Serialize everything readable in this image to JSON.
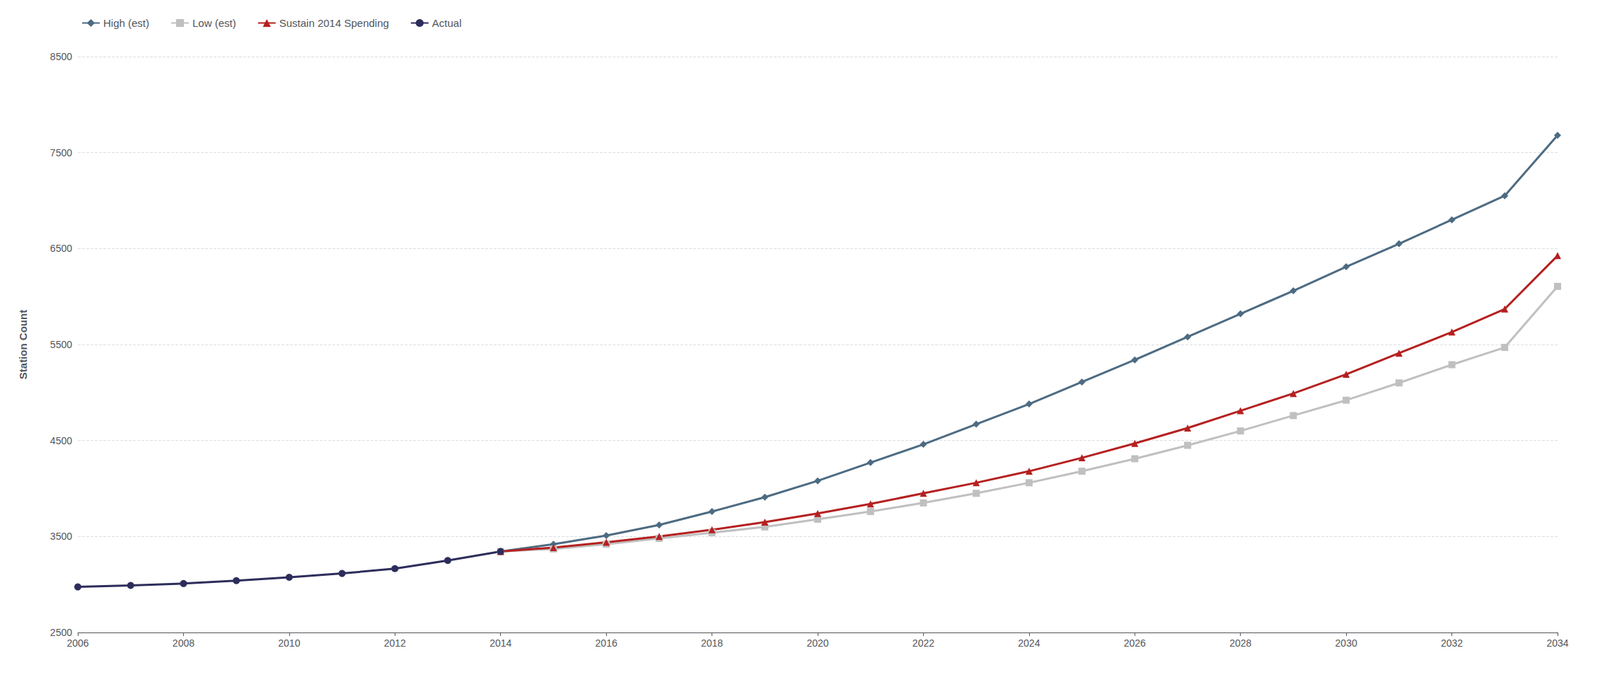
{
  "chart_data": {
    "type": "line",
    "ylabel": "Station Count",
    "xlim": [
      2006,
      2034
    ],
    "xticks": [
      2006,
      2008,
      2010,
      2012,
      2014,
      2016,
      2018,
      2020,
      2022,
      2024,
      2026,
      2028,
      2030,
      2032,
      2034
    ],
    "ylim": [
      2500,
      8500
    ],
    "yticks": [
      2500,
      3500,
      4500,
      5500,
      6500,
      7500,
      8500
    ],
    "grid": true,
    "legend": "upper left",
    "series": [
      {
        "name": "High (est)",
        "color": "#4d6b82",
        "marker": "diamond",
        "x": [
          2014,
          2015,
          2016,
          2017,
          2018,
          2019,
          2020,
          2021,
          2022,
          2023,
          2024,
          2025,
          2026,
          2027,
          2028,
          2029,
          2030,
          2031,
          2032,
          2033,
          2034
        ],
        "values": [
          3344,
          3420,
          3510,
          3620,
          3760,
          3910,
          4080,
          4270,
          4460,
          4670,
          4880,
          5110,
          5340,
          5580,
          5820,
          6060,
          6310,
          6550,
          6800,
          7050,
          7680
        ]
      },
      {
        "name": "Low (est)",
        "color": "#c0c0c0",
        "marker": "square",
        "x": [
          2014,
          2015,
          2016,
          2017,
          2018,
          2019,
          2020,
          2021,
          2022,
          2023,
          2024,
          2025,
          2026,
          2027,
          2028,
          2029,
          2030,
          2031,
          2032,
          2033,
          2034
        ],
        "values": [
          3344,
          3370,
          3420,
          3480,
          3540,
          3600,
          3680,
          3760,
          3850,
          3950,
          4060,
          4180,
          4310,
          4450,
          4600,
          4760,
          4920,
          5100,
          5290,
          5470,
          6106
        ]
      },
      {
        "name": "Sustain 2014 Spending",
        "color": "#b52020",
        "marker": "triangle",
        "x": [
          2014,
          2015,
          2016,
          2017,
          2018,
          2019,
          2020,
          2021,
          2022,
          2023,
          2024,
          2025,
          2026,
          2027,
          2028,
          2029,
          2030,
          2031,
          2032,
          2033,
          2034
        ],
        "values": [
          3344,
          3385,
          3440,
          3500,
          3570,
          3650,
          3740,
          3840,
          3950,
          4060,
          4180,
          4320,
          4470,
          4630,
          4810,
          4990,
          5190,
          5410,
          5630,
          5870,
          6426
        ]
      },
      {
        "name": "Actual",
        "color": "#2d2d5c",
        "marker": "circle",
        "x": [
          2006,
          2007,
          2008,
          2009,
          2010,
          2011,
          2012,
          2013,
          2014
        ],
        "values": [
          2975,
          2990,
          3010,
          3040,
          3075,
          3115,
          3165,
          3250,
          3344
        ]
      }
    ]
  }
}
